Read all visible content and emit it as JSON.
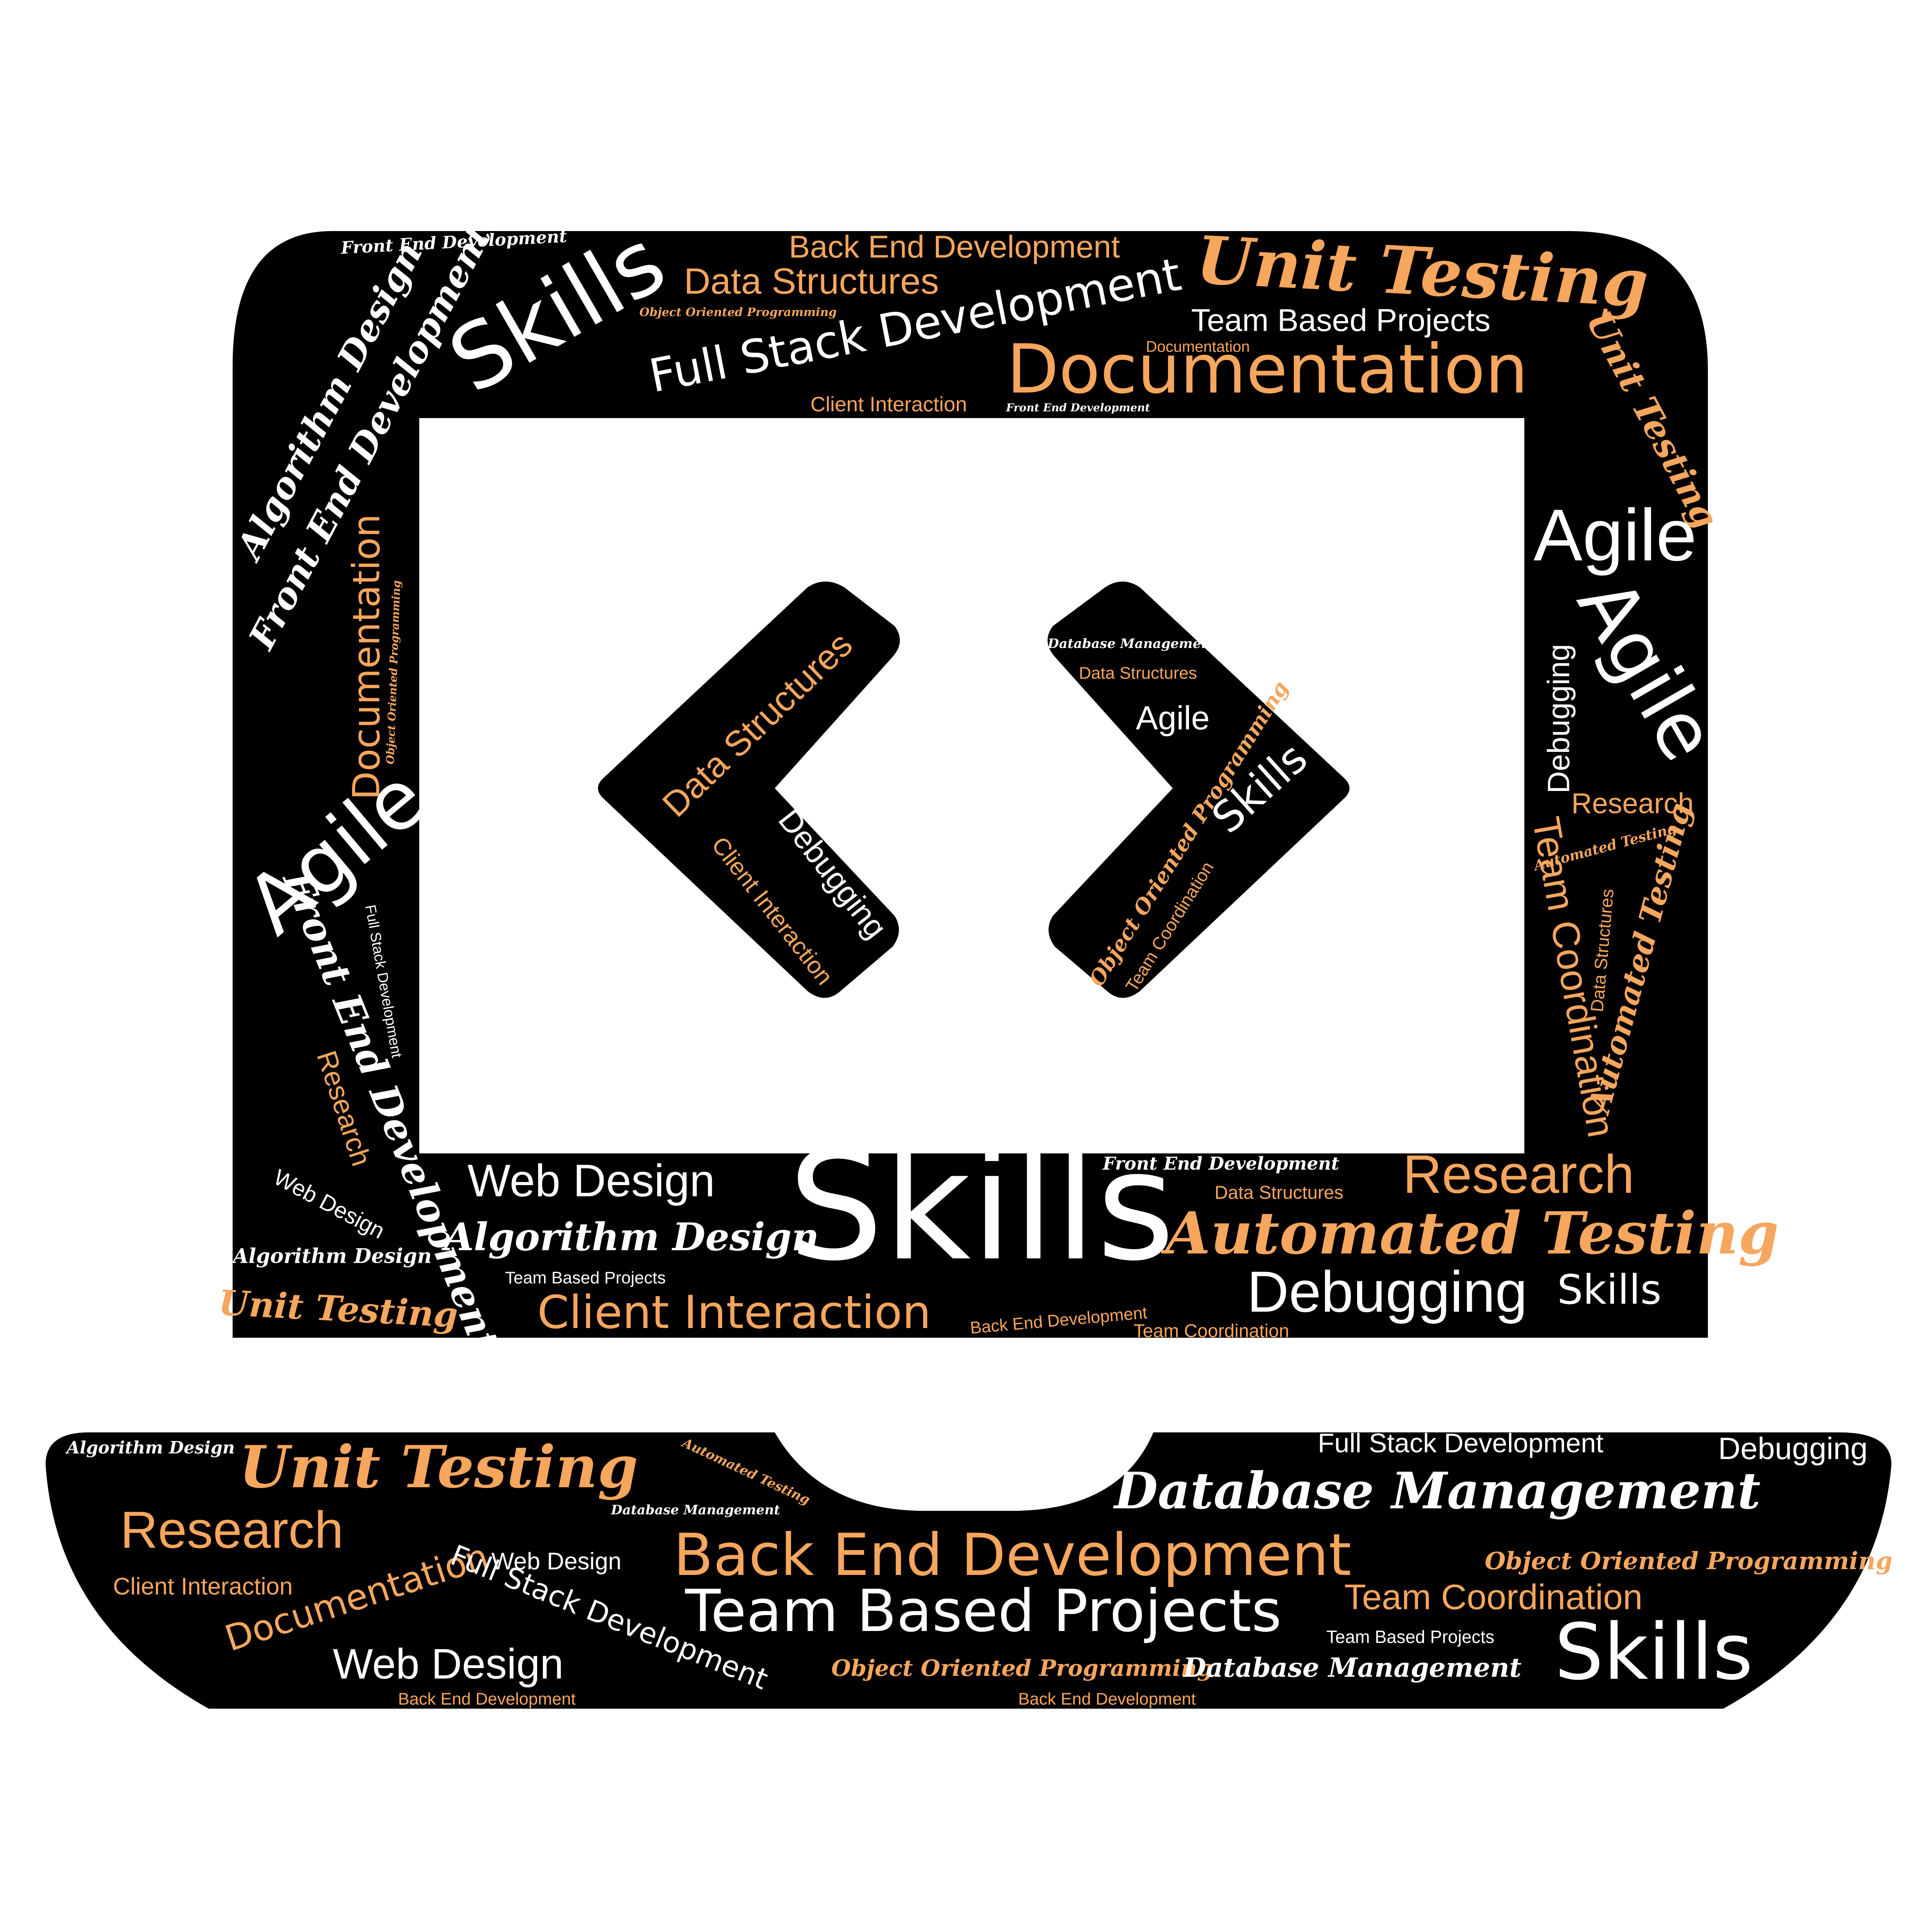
{
  "colors": {
    "background": "#ffffff",
    "shape_fill": "#000000",
    "text_white": "#ffffff",
    "text_orange": "#f6a65d"
  },
  "words": {
    "front_end_development": "Front End Development",
    "back_end_development": "Back End Development",
    "unit_testing": "Unit Testing",
    "skills": "Skills",
    "data_structures": "Data Structures",
    "object_oriented_programming": "Object Oriented Programming",
    "full_stack_development": "Full Stack Development",
    "team_based_projects": "Team Based Projects",
    "documentation": "Documentation",
    "client_interaction": "Client Interaction",
    "algorithm_design": "Algorithm Design",
    "agile": "Agile",
    "debugging": "Debugging",
    "research": "Research",
    "team_coordination": "Team Coordination",
    "automated_testing": "Automated Testing",
    "web_design": "Web Design",
    "database_management": "Database Management"
  }
}
